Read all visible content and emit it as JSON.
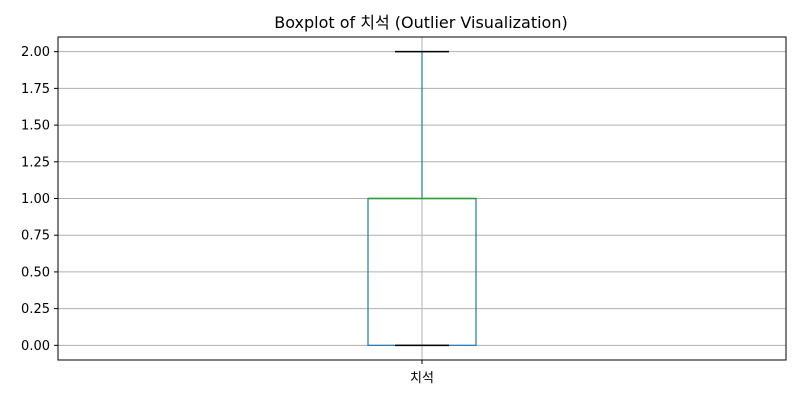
{
  "chart_data": {
    "type": "boxplot",
    "title": "Boxplot of 치석 (Outlier Visualization)",
    "xlabel": "",
    "ylabel": "",
    "categories": [
      "치석"
    ],
    "boxes": [
      {
        "category": "치석",
        "whisker_low": 0.0,
        "q1": 0.0,
        "median": 1.0,
        "q3": 1.0,
        "whisker_high": 2.0,
        "outliers": []
      }
    ],
    "ylim": [
      -0.1,
      2.1
    ],
    "yticks": [
      0.0,
      0.25,
      0.5,
      0.75,
      1.0,
      1.25,
      1.5,
      1.75,
      2.0
    ],
    "ytick_labels": [
      "0.00",
      "0.25",
      "0.50",
      "0.75",
      "1.00",
      "1.25",
      "1.50",
      "1.75",
      "2.00"
    ],
    "grid": true,
    "colors": {
      "box": "#1f77b4",
      "median": "#2ca02c",
      "caps": "#000000",
      "grid": "#b0b0b0",
      "axes": "#000000"
    }
  }
}
